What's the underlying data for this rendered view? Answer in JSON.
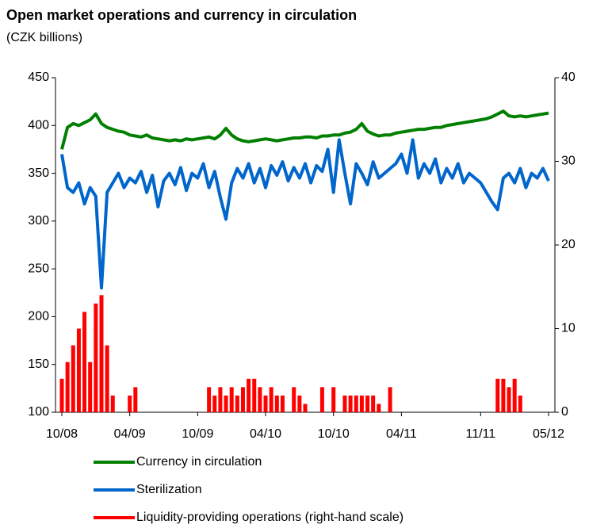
{
  "chart_data": {
    "type": "line",
    "title": "Open market operations and currency in circulation",
    "subtitle": "(CZK billions)",
    "categories": [
      "10/08",
      null,
      null,
      null,
      null,
      null,
      null,
      null,
      null,
      null,
      null,
      null,
      "04/09",
      null,
      null,
      null,
      null,
      null,
      null,
      null,
      null,
      null,
      null,
      null,
      "10/09",
      null,
      null,
      null,
      null,
      null,
      null,
      null,
      null,
      null,
      null,
      null,
      "04/10",
      null,
      null,
      null,
      null,
      null,
      null,
      null,
      null,
      null,
      null,
      null,
      "10/10",
      null,
      null,
      null,
      null,
      null,
      null,
      null,
      null,
      null,
      null,
      null,
      "04/11",
      null,
      null,
      null,
      null,
      null,
      null,
      null,
      null,
      null,
      null,
      null,
      null,
      null,
      "11/11",
      null,
      null,
      null,
      null,
      null,
      null,
      null,
      null,
      null,
      null,
      null,
      "05/12"
    ],
    "ylim": [
      100,
      450
    ],
    "yticks": [
      100,
      150,
      200,
      250,
      300,
      350,
      400,
      450
    ],
    "y2lim": [
      0,
      40
    ],
    "y2ticks": [
      0,
      10,
      20,
      30,
      40
    ],
    "series": [
      {
        "name": "Currency in circulation",
        "color": "#008000",
        "values": [
          375,
          398,
          402,
          400,
          403,
          406,
          412,
          402,
          398,
          396,
          394,
          393,
          390,
          389,
          388,
          390,
          387,
          386,
          385,
          384,
          385,
          384,
          386,
          385,
          386,
          387,
          388,
          386,
          390,
          397,
          390,
          386,
          384,
          383,
          384,
          385,
          386,
          385,
          384,
          385,
          386,
          387,
          387,
          388,
          388,
          387,
          389,
          389,
          390,
          390,
          392,
          393,
          396,
          402,
          394,
          391,
          389,
          390,
          390,
          392,
          393,
          394,
          395,
          396,
          396,
          397,
          398,
          398,
          400,
          401,
          402,
          403,
          404,
          405,
          406,
          407,
          409,
          412,
          415,
          410,
          409,
          410,
          409,
          410,
          411,
          412,
          413
        ]
      },
      {
        "name": "Sterilization",
        "color": "#0066cc",
        "values": [
          370,
          335,
          330,
          340,
          318,
          335,
          326,
          230,
          330,
          340,
          350,
          335,
          345,
          340,
          352,
          330,
          348,
          315,
          342,
          350,
          338,
          356,
          332,
          350,
          345,
          360,
          335,
          352,
          325,
          302,
          340,
          355,
          345,
          360,
          340,
          355,
          335,
          358,
          348,
          362,
          342,
          356,
          345,
          360,
          340,
          358,
          352,
          375,
          330,
          385,
          350,
          318,
          360,
          350,
          338,
          362,
          345,
          350,
          355,
          360,
          370,
          350,
          385,
          345,
          360,
          350,
          365,
          340,
          355,
          345,
          360,
          340,
          350,
          345,
          340,
          330,
          320,
          312,
          345,
          350,
          340,
          355,
          335,
          350,
          345,
          355,
          342
        ]
      },
      {
        "name": "Liquidity-providing operations (right-hand scale)",
        "color": "#ff0000",
        "type": "bar",
        "axis": "y2",
        "values": [
          4,
          6,
          8,
          10,
          12,
          6,
          13,
          14,
          8,
          2,
          0,
          0,
          2,
          3,
          0,
          0,
          0,
          0,
          0,
          0,
          0,
          0,
          0,
          0,
          0,
          0,
          3,
          2,
          3,
          2,
          3,
          2,
          3,
          4,
          4,
          3,
          2,
          3,
          2,
          2,
          0,
          3,
          2,
          1,
          0,
          0,
          3,
          0,
          3,
          0,
          2,
          2,
          2,
          2,
          2,
          2,
          1,
          0,
          3,
          0,
          0,
          0,
          0,
          0,
          0,
          0,
          0,
          0,
          0,
          0,
          0,
          0,
          0,
          0,
          0,
          0,
          0,
          4,
          4,
          3,
          4,
          2,
          0,
          0,
          0,
          0,
          0
        ]
      }
    ]
  }
}
